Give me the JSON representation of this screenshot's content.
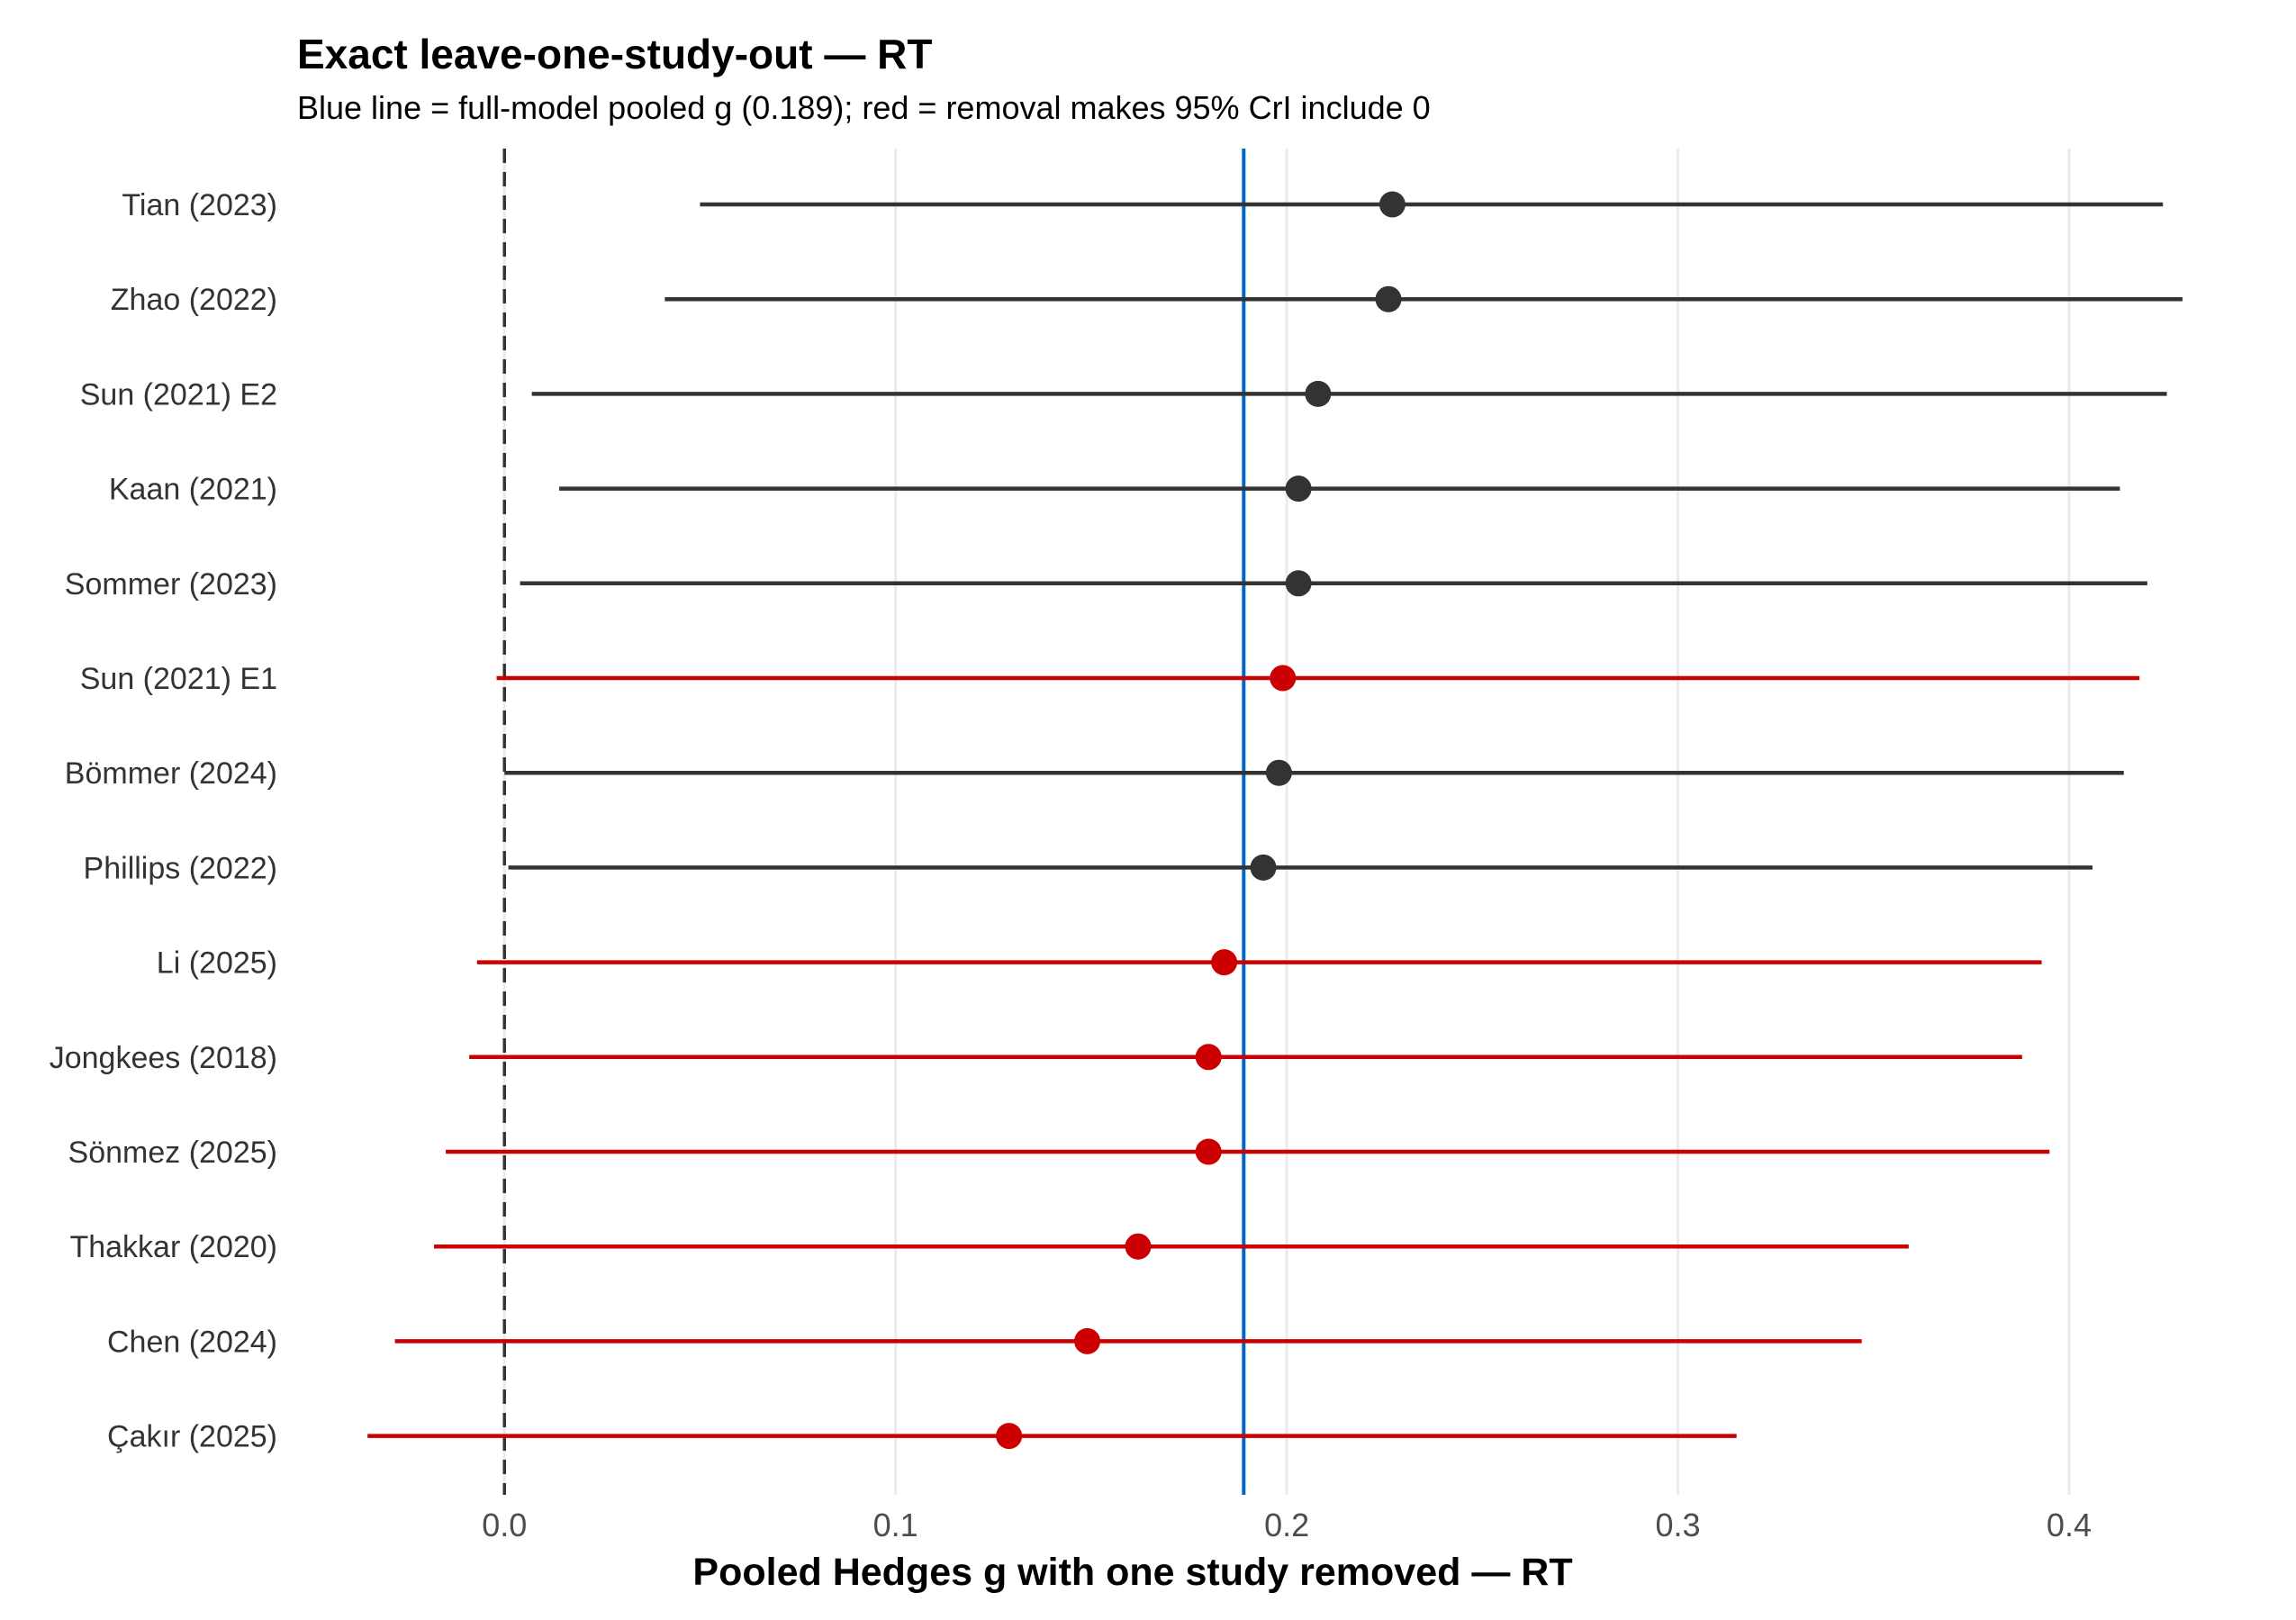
{
  "chart_data": {
    "type": "forest",
    "title": "Exact leave-one-study-out — RT",
    "subtitle": "Blue line = full-model pooled g (0.189); red = removal makes 95% CrI include 0",
    "xlabel": "Pooled Hedges g with one study removed — RT",
    "ylabel": "",
    "xlim": [
      -0.053,
      0.435
    ],
    "x_ticks": [
      0.0,
      0.1,
      0.2,
      0.3,
      0.4
    ],
    "x_tick_labels": [
      "0.0",
      "0.1",
      "0.2",
      "0.3",
      "0.4"
    ],
    "grid": "vertical major gridlines",
    "reference_lines": [
      {
        "value": 0.0,
        "style": "dashed",
        "color": "#333333"
      },
      {
        "value": 0.189,
        "style": "solid",
        "color": "#0066CC"
      }
    ],
    "colors": {
      "default": "#333333",
      "includes_zero": "#CC0000",
      "reference": "#0066CC",
      "grid": "#EBEBEB"
    },
    "studies": [
      {
        "label": "Tian (2023)",
        "estimate": 0.227,
        "lower": 0.05,
        "upper": 0.424,
        "includes_zero": false
      },
      {
        "label": "Zhao (2022)",
        "estimate": 0.226,
        "lower": 0.041,
        "upper": 0.429,
        "includes_zero": false
      },
      {
        "label": "Sun (2021) E2",
        "estimate": 0.208,
        "lower": 0.007,
        "upper": 0.425,
        "includes_zero": false
      },
      {
        "label": "Kaan (2021)",
        "estimate": 0.203,
        "lower": 0.014,
        "upper": 0.413,
        "includes_zero": false
      },
      {
        "label": "Sommer (2023)",
        "estimate": 0.203,
        "lower": 0.004,
        "upper": 0.42,
        "includes_zero": false
      },
      {
        "label": "Sun (2021) E1",
        "estimate": 0.199,
        "lower": -0.002,
        "upper": 0.418,
        "includes_zero": true
      },
      {
        "label": "Bömmer (2024)",
        "estimate": 0.198,
        "lower": 0.0,
        "upper": 0.414,
        "includes_zero": false
      },
      {
        "label": "Phillips (2022)",
        "estimate": 0.194,
        "lower": 0.001,
        "upper": 0.406,
        "includes_zero": false
      },
      {
        "label": "Li (2025)",
        "estimate": 0.184,
        "lower": -0.007,
        "upper": 0.393,
        "includes_zero": true
      },
      {
        "label": "Jongkees (2018)",
        "estimate": 0.18,
        "lower": -0.009,
        "upper": 0.388,
        "includes_zero": true
      },
      {
        "label": "Sönmez (2025)",
        "estimate": 0.18,
        "lower": -0.015,
        "upper": 0.395,
        "includes_zero": true
      },
      {
        "label": "Thakkar (2020)",
        "estimate": 0.162,
        "lower": -0.018,
        "upper": 0.359,
        "includes_zero": true
      },
      {
        "label": "Chen (2024)",
        "estimate": 0.149,
        "lower": -0.028,
        "upper": 0.347,
        "includes_zero": true
      },
      {
        "label": "Çakır (2025)",
        "estimate": 0.129,
        "lower": -0.035,
        "upper": 0.315,
        "includes_zero": true
      }
    ]
  }
}
